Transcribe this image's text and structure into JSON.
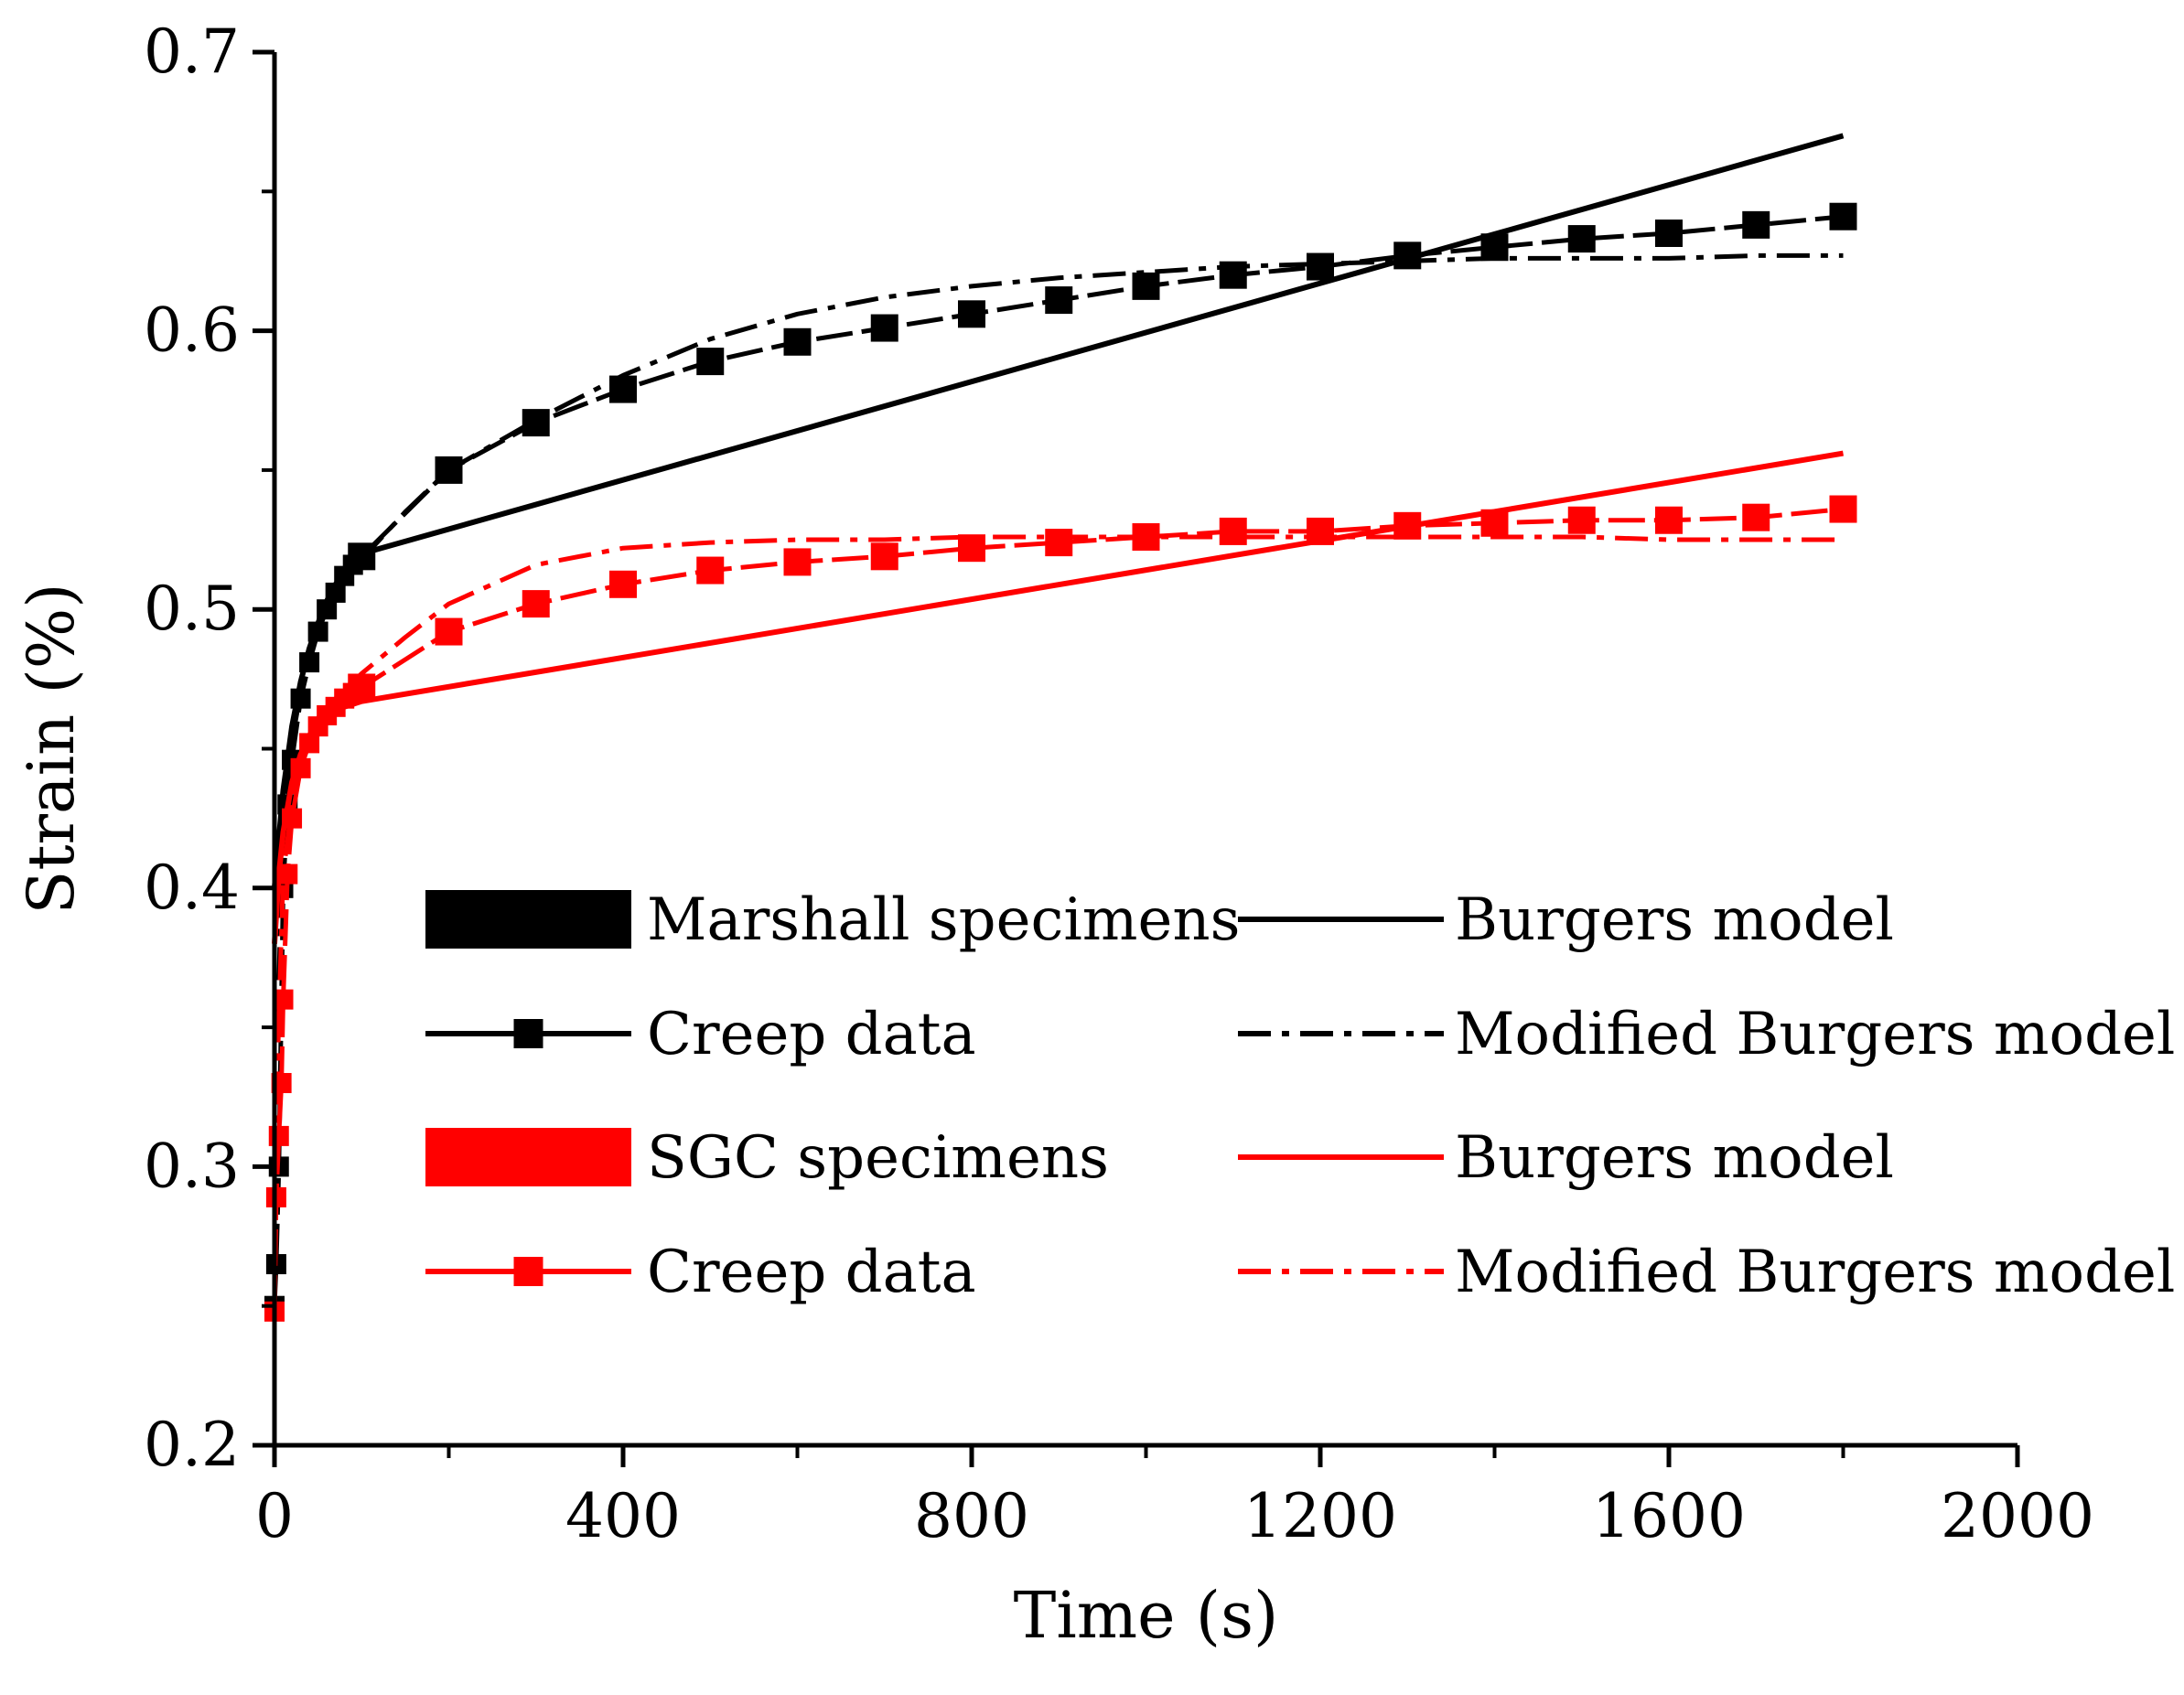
{
  "chart_data": {
    "type": "line",
    "title": "",
    "xlabel": "Time (s)",
    "ylabel": "Strain (%)",
    "xlim": [
      0,
      2000
    ],
    "ylim": [
      0.2,
      0.7
    ],
    "x_ticks": [
      0,
      400,
      800,
      1200,
      1600,
      2000
    ],
    "x_tick_labels": [
      "0",
      "400",
      "800",
      "1200",
      "1600",
      "2000"
    ],
    "y_ticks": [
      0.2,
      0.3,
      0.4,
      0.5,
      0.6,
      0.7
    ],
    "y_tick_labels": [
      "0.2",
      "0.3",
      "0.4",
      "0.5",
      "0.6",
      "0.7"
    ],
    "grid": false,
    "legend_position": "center",
    "legend": {
      "groups": [
        {
          "name": "Marshall specimens",
          "color": "#000000",
          "entries": [
            {
              "label": "Creep data",
              "style": "line-square-marker"
            },
            {
              "label": "Burgers model",
              "style": "solid"
            },
            {
              "label": "Modified Burgers model",
              "style": "dash-dot"
            }
          ]
        },
        {
          "name": "SGC specimens",
          "color": "#ff0000",
          "entries": [
            {
              "label": "Creep data",
              "style": "line-square-marker"
            },
            {
              "label": "Burgers model",
              "style": "solid"
            },
            {
              "label": "Modified Burgers model",
              "style": "dash-dot"
            }
          ]
        }
      ]
    },
    "series": [
      {
        "name": "Marshall specimens - Creep data",
        "color": "#000000",
        "style": "line-square-marker",
        "x": [
          0,
          2,
          5,
          10,
          15,
          20,
          30,
          40,
          50,
          60,
          70,
          80,
          90,
          100,
          200,
          300,
          400,
          500,
          600,
          700,
          800,
          900,
          1000,
          1100,
          1200,
          1300,
          1400,
          1500,
          1600,
          1700,
          1800
        ],
        "y": [
          0.25,
          0.265,
          0.3,
          0.4,
          0.43,
          0.446,
          0.468,
          0.481,
          0.492,
          0.5,
          0.506,
          0.512,
          0.516,
          0.519,
          0.55,
          0.567,
          0.579,
          0.589,
          0.596,
          0.601,
          0.606,
          0.611,
          0.616,
          0.62,
          0.623,
          0.627,
          0.63,
          0.633,
          0.635,
          0.638,
          0.641
        ]
      },
      {
        "name": "Marshall specimens - Burgers model",
        "color": "#000000",
        "style": "solid",
        "x": [
          0,
          5,
          10,
          20,
          30,
          40,
          50,
          60,
          70,
          80,
          90,
          100,
          1800
        ],
        "y": [
          0.4,
          0.418,
          0.435,
          0.458,
          0.474,
          0.486,
          0.495,
          0.503,
          0.509,
          0.513,
          0.517,
          0.52,
          0.67
        ]
      },
      {
        "name": "Marshall specimens - Modified Burgers model",
        "color": "#000000",
        "style": "dash-dot",
        "x": [
          0,
          10,
          20,
          30,
          40,
          50,
          60,
          70,
          80,
          90,
          100,
          150,
          200,
          300,
          400,
          500,
          600,
          700,
          800,
          900,
          1000,
          1100,
          1200,
          1300,
          1400,
          1500,
          1600,
          1700,
          1800
        ],
        "y": [
          0.3,
          0.43,
          0.453,
          0.47,
          0.482,
          0.492,
          0.5,
          0.506,
          0.511,
          0.515,
          0.518,
          0.535,
          0.55,
          0.568,
          0.584,
          0.597,
          0.606,
          0.612,
          0.616,
          0.619,
          0.621,
          0.623,
          0.624,
          0.625,
          0.626,
          0.626,
          0.626,
          0.627,
          0.627
        ]
      },
      {
        "name": "SGC specimens - Creep data",
        "color": "#ff0000",
        "style": "line-square-marker",
        "x": [
          0,
          2,
          5,
          8,
          10,
          15,
          20,
          30,
          40,
          50,
          60,
          70,
          80,
          90,
          100,
          200,
          300,
          400,
          500,
          600,
          700,
          800,
          900,
          1000,
          1100,
          1200,
          1300,
          1400,
          1500,
          1600,
          1700,
          1800
        ],
        "y": [
          0.248,
          0.289,
          0.311,
          0.33,
          0.36,
          0.405,
          0.425,
          0.443,
          0.452,
          0.458,
          0.462,
          0.465,
          0.468,
          0.47,
          0.472,
          0.492,
          0.502,
          0.509,
          0.514,
          0.517,
          0.519,
          0.522,
          0.524,
          0.526,
          0.528,
          0.528,
          0.53,
          0.531,
          0.532,
          0.532,
          0.533,
          0.536
        ]
      },
      {
        "name": "SGC specimens - Burgers model",
        "color": "#ff0000",
        "style": "solid",
        "x": [
          0,
          5,
          10,
          20,
          30,
          40,
          50,
          60,
          70,
          80,
          90,
          100,
          1800
        ],
        "y": [
          0.38,
          0.405,
          0.42,
          0.438,
          0.448,
          0.454,
          0.458,
          0.461,
          0.463,
          0.465,
          0.466,
          0.467,
          0.556
        ]
      },
      {
        "name": "SGC specimens - Modified Burgers model",
        "color": "#ff0000",
        "style": "dash-dot",
        "x": [
          0,
          10,
          20,
          30,
          40,
          50,
          60,
          70,
          80,
          90,
          100,
          150,
          200,
          300,
          400,
          500,
          600,
          700,
          800,
          900,
          1000,
          1100,
          1200,
          1300,
          1400,
          1500,
          1600,
          1700,
          1800
        ],
        "y": [
          0.3,
          0.405,
          0.43,
          0.446,
          0.455,
          0.461,
          0.465,
          0.468,
          0.471,
          0.474,
          0.477,
          0.49,
          0.502,
          0.516,
          0.522,
          0.524,
          0.525,
          0.525,
          0.526,
          0.526,
          0.526,
          0.526,
          0.526,
          0.526,
          0.526,
          0.526,
          0.525,
          0.525,
          0.525
        ]
      }
    ]
  }
}
